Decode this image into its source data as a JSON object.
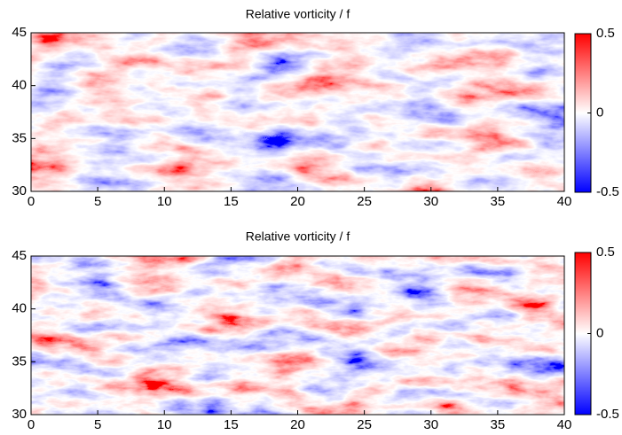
{
  "chart_data": [
    {
      "type": "heatmap",
      "title": "Relative vorticity / f",
      "xlim": [
        0,
        40
      ],
      "xticks": [
        0,
        5,
        10,
        15,
        20,
        25,
        30,
        35,
        40
      ],
      "ylim": [
        30,
        45
      ],
      "yticks": [
        30,
        35,
        40,
        45
      ],
      "colormap": [
        "#0000ff",
        "#ffffff",
        "#ff0000"
      ],
      "colorbar_lim": [
        -0.5,
        0.5
      ],
      "colorbar_ticks": [
        -0.5,
        0,
        0.5
      ]
    },
    {
      "type": "heatmap",
      "title": "Relative vorticity / f",
      "xlim": [
        0,
        40
      ],
      "xticks": [
        0,
        5,
        10,
        15,
        20,
        25,
        30,
        35,
        40
      ],
      "ylim": [
        30,
        45
      ],
      "yticks": [
        30,
        35,
        40,
        45
      ],
      "colormap": [
        "#0000ff",
        "#ffffff",
        "#ff0000"
      ],
      "colorbar_lim": [
        -0.5,
        0.5
      ],
      "colorbar_ticks": [
        -0.5,
        0,
        0.5
      ]
    }
  ]
}
